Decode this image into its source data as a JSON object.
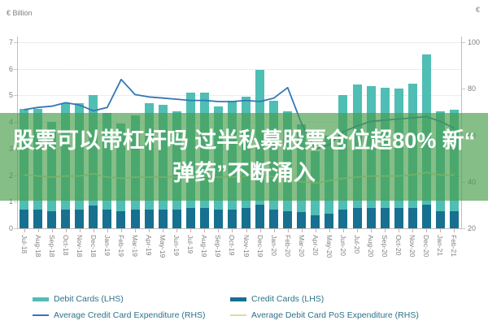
{
  "axes": {
    "left_title": "€ Billion",
    "right_title": "€"
  },
  "overlay": {
    "line1": "股票可以带杠杆吗 过半私募股票仓位超80% 新“",
    "line2": "弹药”不断涌入",
    "full_title": "股票可以带杠杆吗 过半私募股票仓位超80% 新“弹药”不断涌入",
    "background": "rgba(72,156,74,0.66)",
    "text_color": "#ffffff"
  },
  "legend": {
    "items": [
      {
        "label": "Debit Cards (LHS)",
        "color": "#4fbeb4",
        "shape": "thick"
      },
      {
        "label": "Credit Cards (LHS)",
        "color": "#17708f",
        "shape": "thick"
      },
      {
        "label": "Average Credit Card Expenditure (RHS)",
        "color": "#3377b5",
        "shape": "thin"
      },
      {
        "label": "Average Debit Card PoS Expenditure (RHS)",
        "color": "#d8df9e",
        "shape": "thin"
      }
    ]
  },
  "chart_data": {
    "type": "bar",
    "subtype": "stacked-bars-with-lines",
    "title": "",
    "xlabel": "",
    "ylabel_left": "€ Billion",
    "ylabel_right": "€",
    "grid": true,
    "legend_position": "bottom",
    "categories": [
      "Jul-18",
      "Aug-18",
      "Sep-18",
      "Oct-18",
      "Nov-18",
      "Dec-18",
      "Jan-19",
      "Feb-19",
      "Mar-19",
      "Apr-19",
      "May-19",
      "Jun-19",
      "Jul-19",
      "Aug-19",
      "Sep-19",
      "Oct-19",
      "Nov-19",
      "Dec-19",
      "Jan-20",
      "Feb-20",
      "Mar-20",
      "Apr-20",
      "May-20",
      "Jun-20",
      "Jul-20",
      "Aug-20",
      "Sep-20",
      "Oct-20",
      "Nov-20",
      "Dec-20",
      "Jan-21",
      "Feb-21"
    ],
    "left_axis": {
      "min": 0,
      "max": 7,
      "ticks": [
        0,
        1,
        2,
        3,
        4,
        5,
        6,
        7
      ]
    },
    "right_axis": {
      "min": 20,
      "max": 100,
      "ticks": [
        20,
        40,
        60,
        80,
        100
      ]
    },
    "series": [
      {
        "name": "Debit Cards (LHS)",
        "render": "bar",
        "stack": "cards",
        "axis": "left",
        "color": "#4fbeb4",
        "values": [
          3.8,
          3.8,
          3.35,
          4.0,
          4.0,
          4.15,
          3.65,
          3.3,
          3.55,
          4.0,
          3.95,
          3.7,
          4.35,
          4.35,
          3.9,
          4.1,
          4.2,
          5.05,
          4.1,
          3.75,
          3.3,
          2.4,
          2.95,
          4.3,
          4.65,
          4.6,
          4.55,
          4.5,
          4.7,
          5.65,
          3.75,
          3.8
        ]
      },
      {
        "name": "Credit Cards (LHS)",
        "render": "bar",
        "stack": "cards",
        "axis": "left",
        "color": "#17708f",
        "values": [
          0.7,
          0.7,
          0.65,
          0.7,
          0.7,
          0.85,
          0.7,
          0.65,
          0.7,
          0.7,
          0.7,
          0.7,
          0.75,
          0.75,
          0.7,
          0.7,
          0.75,
          0.9,
          0.7,
          0.65,
          0.6,
          0.5,
          0.55,
          0.7,
          0.75,
          0.75,
          0.75,
          0.75,
          0.75,
          0.9,
          0.65,
          0.65
        ]
      },
      {
        "name": "Average Credit Card Expenditure (RHS)",
        "render": "line",
        "axis": "right",
        "color": "#3377b5",
        "values": [
          71,
          72,
          72.5,
          74,
          73,
          70.5,
          72,
          84,
          77.5,
          76.5,
          76,
          75.5,
          75,
          75,
          74.5,
          74.5,
          75,
          74.5,
          76,
          80.5,
          65,
          54,
          56,
          61.5,
          64,
          66,
          66.5,
          67,
          67.5,
          68,
          66,
          63
        ]
      },
      {
        "name": "Average Debit Card PoS Expenditure (RHS)",
        "render": "line",
        "axis": "right",
        "color": "#d8df9e",
        "values": [
          43,
          42.5,
          42,
          42.5,
          42.5,
          43.5,
          42,
          41.5,
          42,
          42,
          42,
          42,
          42.5,
          42.5,
          42,
          42,
          42.5,
          43.5,
          42,
          41.5,
          40,
          39.5,
          40.5,
          41.5,
          42,
          42.5,
          42.5,
          42.5,
          43,
          44,
          43,
          43
        ]
      }
    ]
  }
}
